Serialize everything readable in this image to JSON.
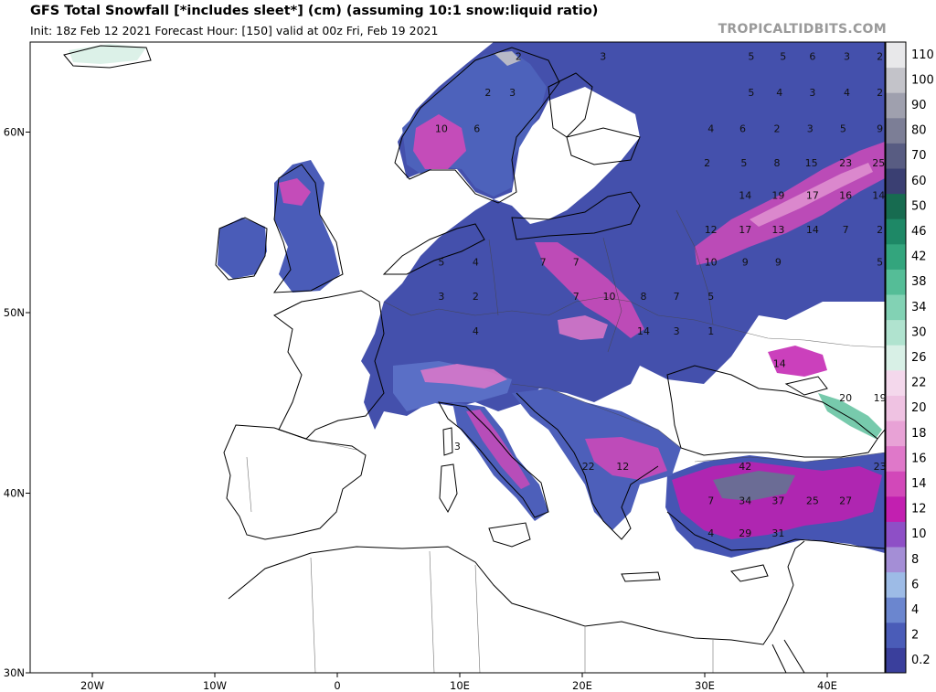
{
  "header": {
    "title": "GFS Total Snowfall [*includes sleet*] (cm) (assuming 10:1 snow:liquid ratio)",
    "subtitle": "Init: 18z Feb 12 2021   Forecast Hour: [150]   valid at 00z Fri, Feb 19 2021",
    "brand": "TROPICALTIDBITS.COM"
  },
  "axes": {
    "longitude_ticks": [
      "20W",
      "10W",
      "0",
      "10E",
      "20E",
      "30E",
      "40E"
    ],
    "latitude_ticks": [
      "30N",
      "40N",
      "50N",
      "60N"
    ]
  },
  "legend": {
    "levels": [
      {
        "label": "0.2",
        "color": "#3a3f9c"
      },
      {
        "label": "2",
        "color": "#4a5cb8"
      },
      {
        "label": "4",
        "color": "#6b86cf"
      },
      {
        "label": "6",
        "color": "#9dbbe6"
      },
      {
        "label": "8",
        "color": "#a48ed6"
      },
      {
        "label": "10",
        "color": "#8e4fc6"
      },
      {
        "label": "12",
        "color": "#c21fb0"
      },
      {
        "label": "14",
        "color": "#d248b9"
      },
      {
        "label": "16",
        "color": "#df78c9"
      },
      {
        "label": "18",
        "color": "#e8a2d6"
      },
      {
        "label": "20",
        "color": "#efc2e2"
      },
      {
        "label": "22",
        "color": "#f4d8ec"
      },
      {
        "label": "26",
        "color": "#d8f0e6"
      },
      {
        "label": "30",
        "color": "#b0e3cf"
      },
      {
        "label": "34",
        "color": "#82d2b4"
      },
      {
        "label": "38",
        "color": "#55bd97"
      },
      {
        "label": "42",
        "color": "#33a57d"
      },
      {
        "label": "46",
        "color": "#1e8866"
      },
      {
        "label": "50",
        "color": "#176b50"
      },
      {
        "label": "60",
        "color": "#3a3f72"
      },
      {
        "label": "70",
        "color": "#585c82"
      },
      {
        "label": "80",
        "color": "#7c7e96"
      },
      {
        "label": "90",
        "color": "#9fa0ae"
      },
      {
        "label": "100",
        "color": "#c3c3c9"
      },
      {
        "label": "110",
        "color": "#e8e8ea"
      }
    ]
  },
  "snow_values": [
    {
      "v": "2",
      "lon": 14.8,
      "lat": 64.2
    },
    {
      "v": "3",
      "lon": 21.7,
      "lat": 64.2
    },
    {
      "v": "5",
      "lon": 33.8,
      "lat": 64.2
    },
    {
      "v": "5",
      "lon": 36.4,
      "lat": 64.2
    },
    {
      "v": "6",
      "lon": 38.8,
      "lat": 64.2
    },
    {
      "v": "3",
      "lon": 41.6,
      "lat": 64.2
    },
    {
      "v": "2",
      "lon": 44.3,
      "lat": 64.2
    },
    {
      "v": "2",
      "lon": 12.3,
      "lat": 62.2
    },
    {
      "v": "3",
      "lon": 14.3,
      "lat": 62.2
    },
    {
      "v": "5",
      "lon": 33.8,
      "lat": 62.2
    },
    {
      "v": "4",
      "lon": 36.1,
      "lat": 62.2
    },
    {
      "v": "3",
      "lon": 38.8,
      "lat": 62.2
    },
    {
      "v": "4",
      "lon": 41.6,
      "lat": 62.2
    },
    {
      "v": "2",
      "lon": 44.3,
      "lat": 62.2
    },
    {
      "v": "10",
      "lon": 8.5,
      "lat": 60.2
    },
    {
      "v": "6",
      "lon": 11.4,
      "lat": 60.2
    },
    {
      "v": "4",
      "lon": 30.5,
      "lat": 60.2
    },
    {
      "v": "6",
      "lon": 33.1,
      "lat": 60.2
    },
    {
      "v": "2",
      "lon": 35.9,
      "lat": 60.2
    },
    {
      "v": "3",
      "lon": 38.6,
      "lat": 60.2
    },
    {
      "v": "5",
      "lon": 41.3,
      "lat": 60.2
    },
    {
      "v": "9",
      "lon": 44.3,
      "lat": 60.2
    },
    {
      "v": "2",
      "lon": 30.2,
      "lat": 58.3
    },
    {
      "v": "5",
      "lon": 33.2,
      "lat": 58.3
    },
    {
      "v": "8",
      "lon": 35.9,
      "lat": 58.3
    },
    {
      "v": "15",
      "lon": 38.7,
      "lat": 58.3
    },
    {
      "v": "23",
      "lon": 41.5,
      "lat": 58.3
    },
    {
      "v": "25",
      "lon": 44.2,
      "lat": 58.3
    },
    {
      "v": "14",
      "lon": 33.3,
      "lat": 56.5
    },
    {
      "v": "19",
      "lon": 36.0,
      "lat": 56.5
    },
    {
      "v": "17",
      "lon": 38.8,
      "lat": 56.5
    },
    {
      "v": "16",
      "lon": 41.5,
      "lat": 56.5
    },
    {
      "v": "14",
      "lon": 44.2,
      "lat": 56.5
    },
    {
      "v": "12",
      "lon": 30.5,
      "lat": 54.6
    },
    {
      "v": "17",
      "lon": 33.3,
      "lat": 54.6
    },
    {
      "v": "13",
      "lon": 36.0,
      "lat": 54.6
    },
    {
      "v": "14",
      "lon": 38.8,
      "lat": 54.6
    },
    {
      "v": "7",
      "lon": 41.5,
      "lat": 54.6
    },
    {
      "v": "2",
      "lon": 44.3,
      "lat": 54.6
    },
    {
      "v": "5",
      "lon": 8.5,
      "lat": 52.8
    },
    {
      "v": "4",
      "lon": 11.3,
      "lat": 52.8
    },
    {
      "v": "7",
      "lon": 16.8,
      "lat": 52.8
    },
    {
      "v": "7",
      "lon": 19.5,
      "lat": 52.8
    },
    {
      "v": "10",
      "lon": 30.5,
      "lat": 52.8
    },
    {
      "v": "9",
      "lon": 33.3,
      "lat": 52.8
    },
    {
      "v": "9",
      "lon": 36.0,
      "lat": 52.8
    },
    {
      "v": "5",
      "lon": 44.3,
      "lat": 52.8
    },
    {
      "v": "3",
      "lon": 8.5,
      "lat": 50.9
    },
    {
      "v": "2",
      "lon": 11.3,
      "lat": 50.9
    },
    {
      "v": "7",
      "lon": 19.5,
      "lat": 50.9
    },
    {
      "v": "10",
      "lon": 22.2,
      "lat": 50.9
    },
    {
      "v": "8",
      "lon": 25.0,
      "lat": 50.9
    },
    {
      "v": "7",
      "lon": 27.7,
      "lat": 50.9
    },
    {
      "v": "5",
      "lon": 30.5,
      "lat": 50.9
    },
    {
      "v": "4",
      "lon": 11.3,
      "lat": 49.0
    },
    {
      "v": "14",
      "lon": 25.0,
      "lat": 49.0
    },
    {
      "v": "3",
      "lon": 27.7,
      "lat": 49.0
    },
    {
      "v": "1",
      "lon": 30.5,
      "lat": 49.0
    },
    {
      "v": "14",
      "lon": 36.1,
      "lat": 47.2
    },
    {
      "v": "20",
      "lon": 41.5,
      "lat": 45.3
    },
    {
      "v": "19",
      "lon": 44.3,
      "lat": 45.3
    },
    {
      "v": "3",
      "lon": 9.8,
      "lat": 42.6
    },
    {
      "v": "22",
      "lon": 20.5,
      "lat": 41.5
    },
    {
      "v": "12",
      "lon": 23.3,
      "lat": 41.5
    },
    {
      "v": "42",
      "lon": 33.3,
      "lat": 41.5
    },
    {
      "v": "23",
      "lon": 44.3,
      "lat": 41.5
    },
    {
      "v": "7",
      "lon": 30.5,
      "lat": 39.6
    },
    {
      "v": "34",
      "lon": 33.3,
      "lat": 39.6
    },
    {
      "v": "37",
      "lon": 36.0,
      "lat": 39.6
    },
    {
      "v": "25",
      "lon": 38.8,
      "lat": 39.6
    },
    {
      "v": "27",
      "lon": 41.5,
      "lat": 39.6
    },
    {
      "v": "4",
      "lon": 30.5,
      "lat": 37.8
    },
    {
      "v": "29",
      "lon": 33.3,
      "lat": 37.8
    },
    {
      "v": "31",
      "lon": 36.0,
      "lat": 37.8
    }
  ]
}
